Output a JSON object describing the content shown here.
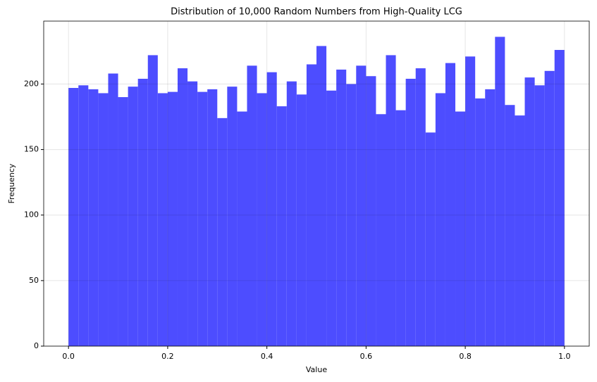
{
  "chart_data": {
    "type": "histogram",
    "title": "Distribution of 10,000 Random Numbers from High-Quality LCG",
    "xlabel": "Value",
    "ylabel": "Frequency",
    "bins": [
      0,
      0.02,
      0.04,
      0.06,
      0.08,
      0.1,
      0.12,
      0.14,
      0.16,
      0.18,
      0.2,
      0.22,
      0.24,
      0.26,
      0.28,
      0.3,
      0.32,
      0.34,
      0.36,
      0.38,
      0.4,
      0.42,
      0.44,
      0.46,
      0.48,
      0.5,
      0.52,
      0.54,
      0.56,
      0.58,
      0.6,
      0.62,
      0.64,
      0.66,
      0.68,
      0.7,
      0.72,
      0.74,
      0.76,
      0.78,
      0.8,
      0.82,
      0.84,
      0.86,
      0.88,
      0.9,
      0.92,
      0.94,
      0.96,
      0.98,
      1
    ],
    "counts": [
      197,
      199,
      196,
      193,
      208,
      190,
      198,
      204,
      222,
      193,
      194,
      212,
      202,
      194,
      196,
      174,
      198,
      179,
      214,
      193,
      209,
      183,
      202,
      192,
      215,
      229,
      195,
      211,
      200,
      214,
      206,
      177,
      222,
      180,
      204,
      212,
      163,
      193,
      216,
      179,
      221,
      189,
      196,
      236,
      184,
      176,
      205,
      199,
      210,
      226
    ],
    "color": "#4d4dff",
    "xlim": [
      -0.05,
      1.05
    ],
    "xticks": [
      {
        "value": 0,
        "label": "0.0"
      },
      0.2,
      0.4,
      0.6,
      0.8,
      {
        "value": 1,
        "label": "1.0"
      }
    ],
    "ylim": [
      0,
      248
    ],
    "yticks": [
      0,
      50,
      100,
      150,
      200
    ],
    "grid": true
  }
}
